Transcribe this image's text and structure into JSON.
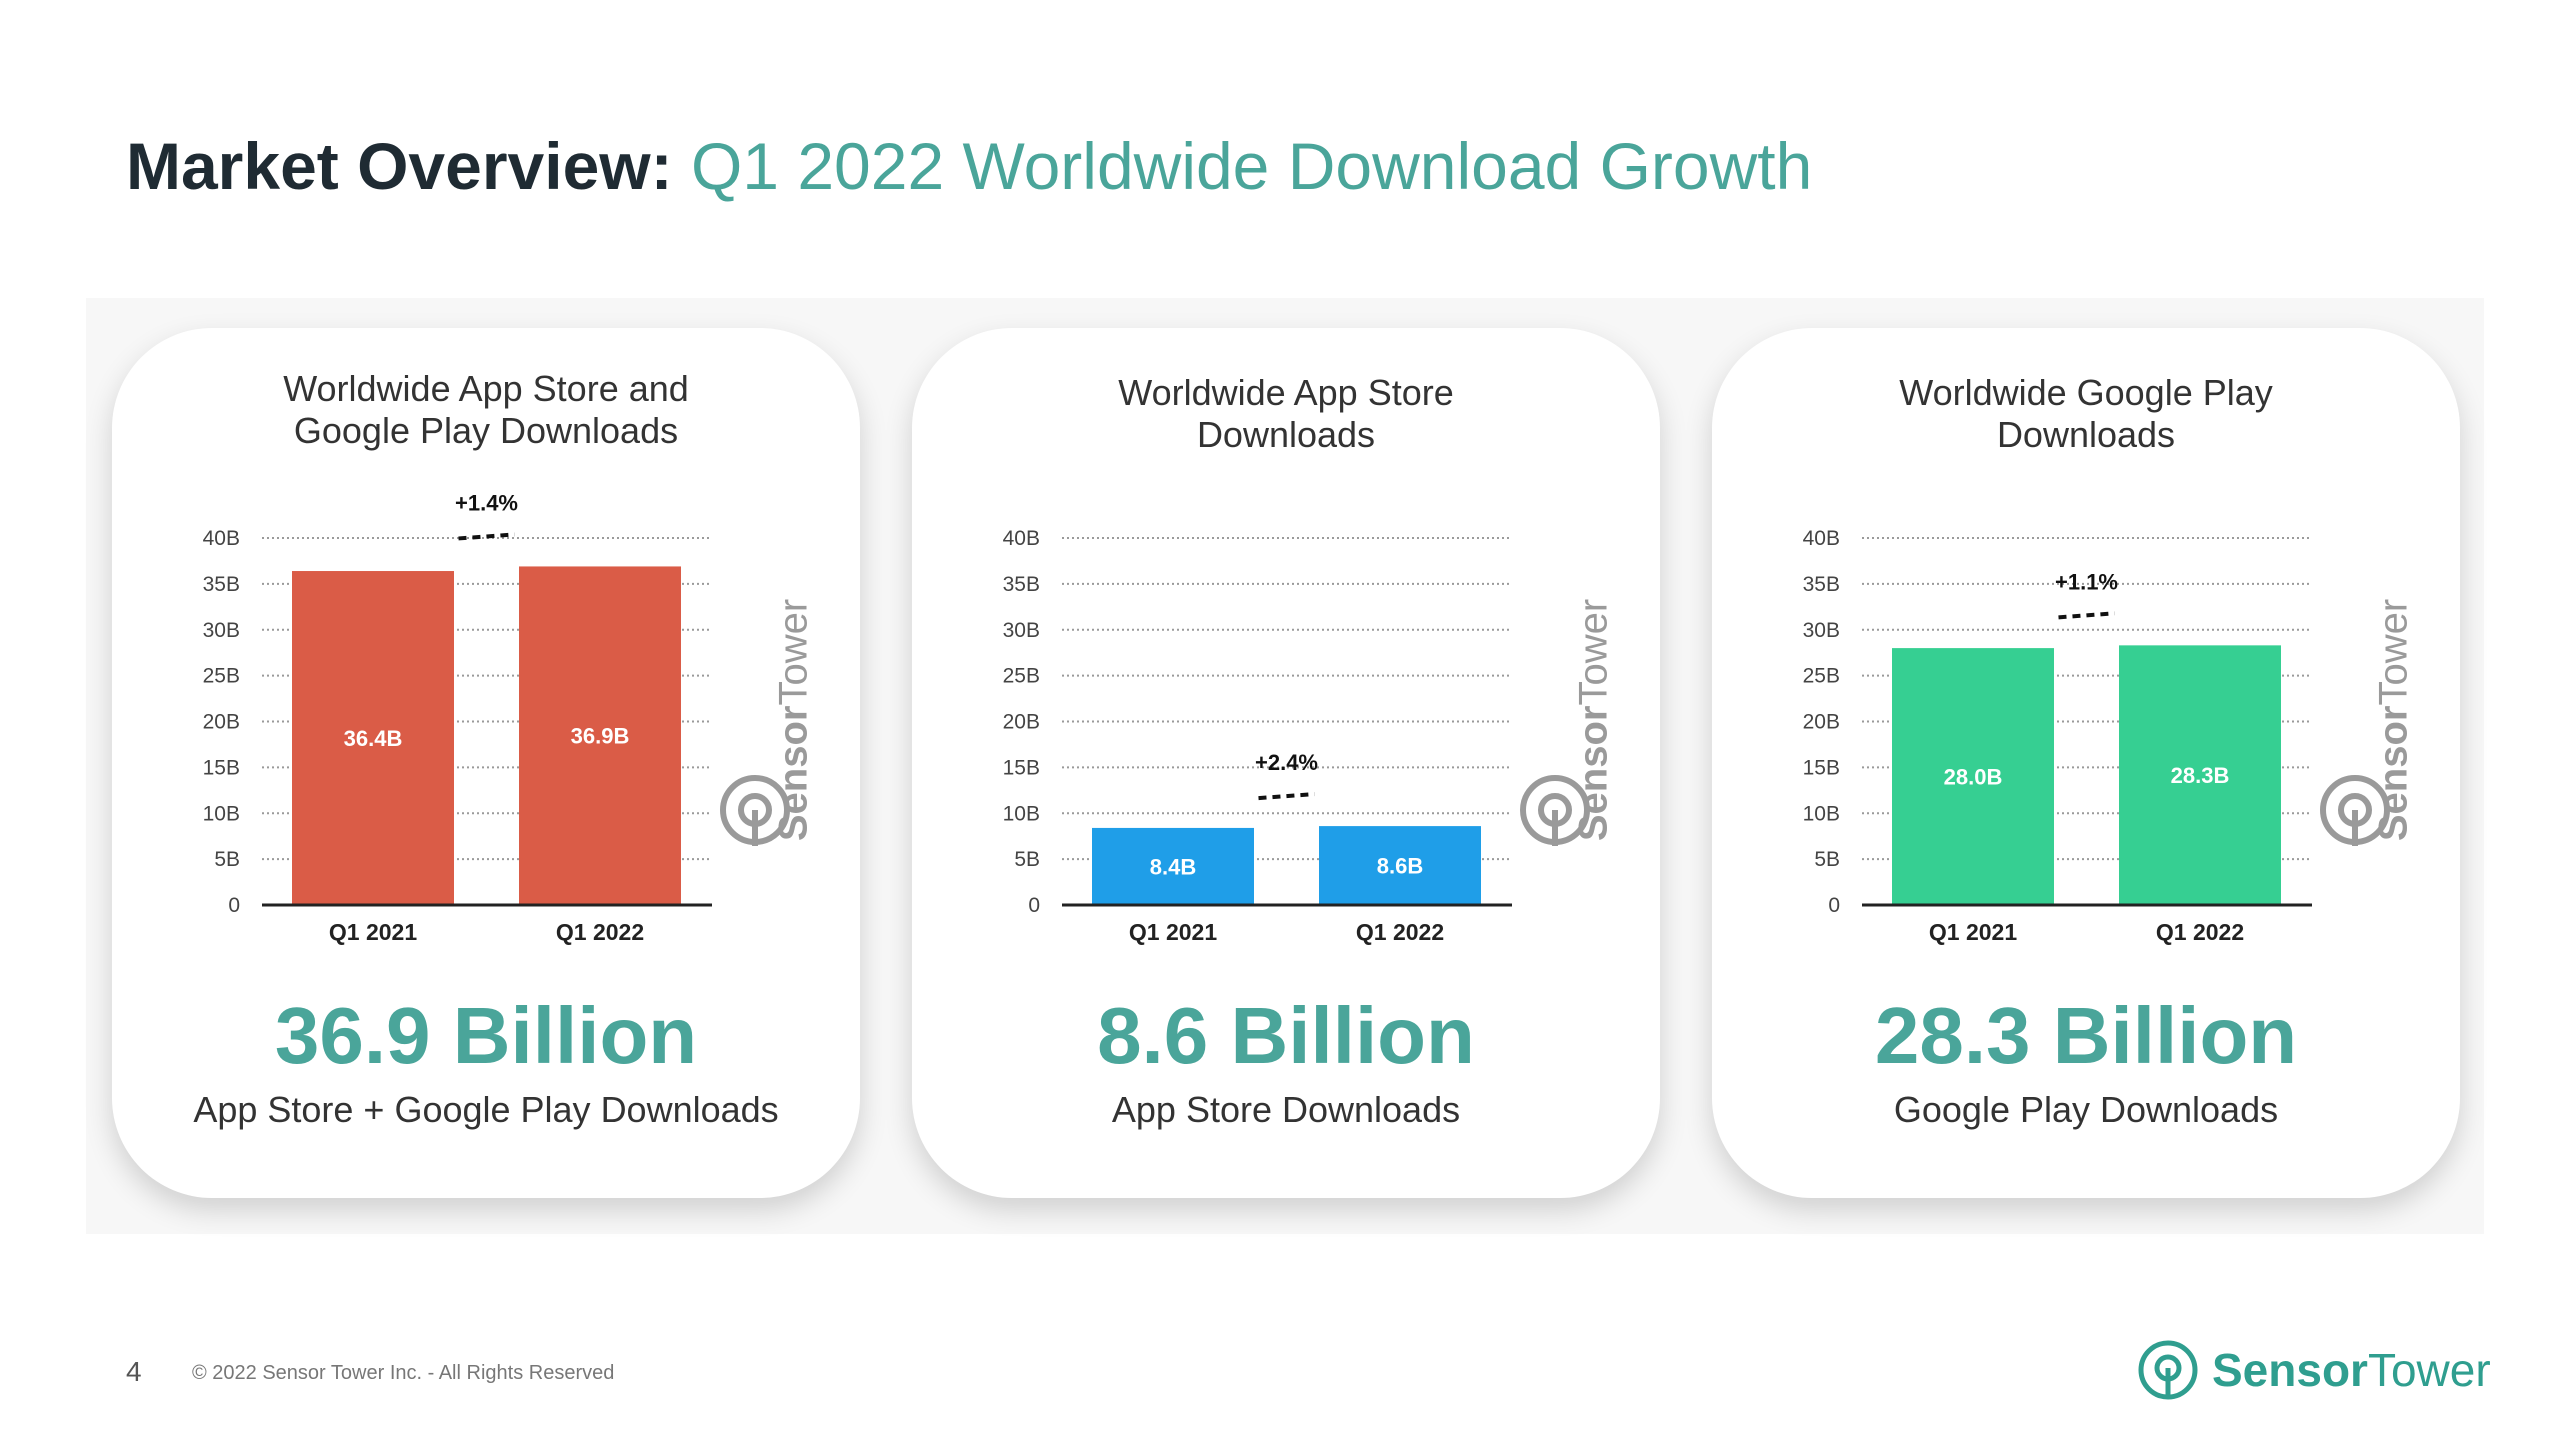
{
  "header": {
    "title_bold": "Market Overview:",
    "title_light": "Q1 2022 Worldwide Download Growth"
  },
  "colors": {
    "accent": "#4aa59a",
    "combined_bar": "#da5c47",
    "app_store_bar": "#1f9ee8",
    "google_play_bar": "#36cf92"
  },
  "cards": [
    {
      "title": "Worldwide App Store and\nGoogle Play Downloads",
      "big_number": "36.9 Billion",
      "big_sub": "App Store + Google Play Downloads",
      "watermark_bold": "Sensor",
      "watermark_light": "Tower"
    },
    {
      "title": "Worldwide App Store\nDownloads",
      "big_number": "8.6 Billion",
      "big_sub": "App Store Downloads",
      "watermark_bold": "Sensor",
      "watermark_light": "Tower"
    },
    {
      "title": "Worldwide Google Play\nDownloads",
      "big_number": "28.3 Billion",
      "big_sub": "Google Play Downloads",
      "watermark_bold": "Sensor",
      "watermark_light": "Tower"
    }
  ],
  "chart_data": [
    {
      "type": "bar",
      "title": "Worldwide App Store and Google Play Downloads",
      "categories": [
        "Q1 2021",
        "Q1 2022"
      ],
      "values": [
        36.4,
        36.9
      ],
      "data_labels": [
        "36.4B",
        "36.9B"
      ],
      "ylim": [
        0,
        40
      ],
      "y_ticks": [
        "0",
        "5B",
        "10B",
        "15B",
        "20B",
        "25B",
        "30B",
        "35B",
        "40B"
      ],
      "growth_label": "+1.4%",
      "grid": true,
      "color": "#da5c47"
    },
    {
      "type": "bar",
      "title": "Worldwide App Store Downloads",
      "categories": [
        "Q1 2021",
        "Q1 2022"
      ],
      "values": [
        8.4,
        8.6
      ],
      "data_labels": [
        "8.4B",
        "8.6B"
      ],
      "ylim": [
        0,
        40
      ],
      "y_ticks": [
        "0",
        "5B",
        "10B",
        "15B",
        "20B",
        "25B",
        "30B",
        "35B",
        "40B"
      ],
      "growth_label": "+2.4%",
      "grid": true,
      "color": "#1f9ee8"
    },
    {
      "type": "bar",
      "title": "Worldwide Google Play Downloads",
      "categories": [
        "Q1 2021",
        "Q1 2022"
      ],
      "values": [
        28.0,
        28.3
      ],
      "data_labels": [
        "28.0B",
        "28.3B"
      ],
      "ylim": [
        0,
        40
      ],
      "y_ticks": [
        "0",
        "5B",
        "10B",
        "15B",
        "20B",
        "25B",
        "30B",
        "35B",
        "40B"
      ],
      "growth_label": "+1.1%",
      "grid": true,
      "color": "#36cf92"
    }
  ],
  "footer": {
    "page_number": "4",
    "copyright": "© 2022 Sensor Tower Inc. - All Rights Reserved",
    "logo_bold": "Sensor",
    "logo_light": "Tower"
  }
}
